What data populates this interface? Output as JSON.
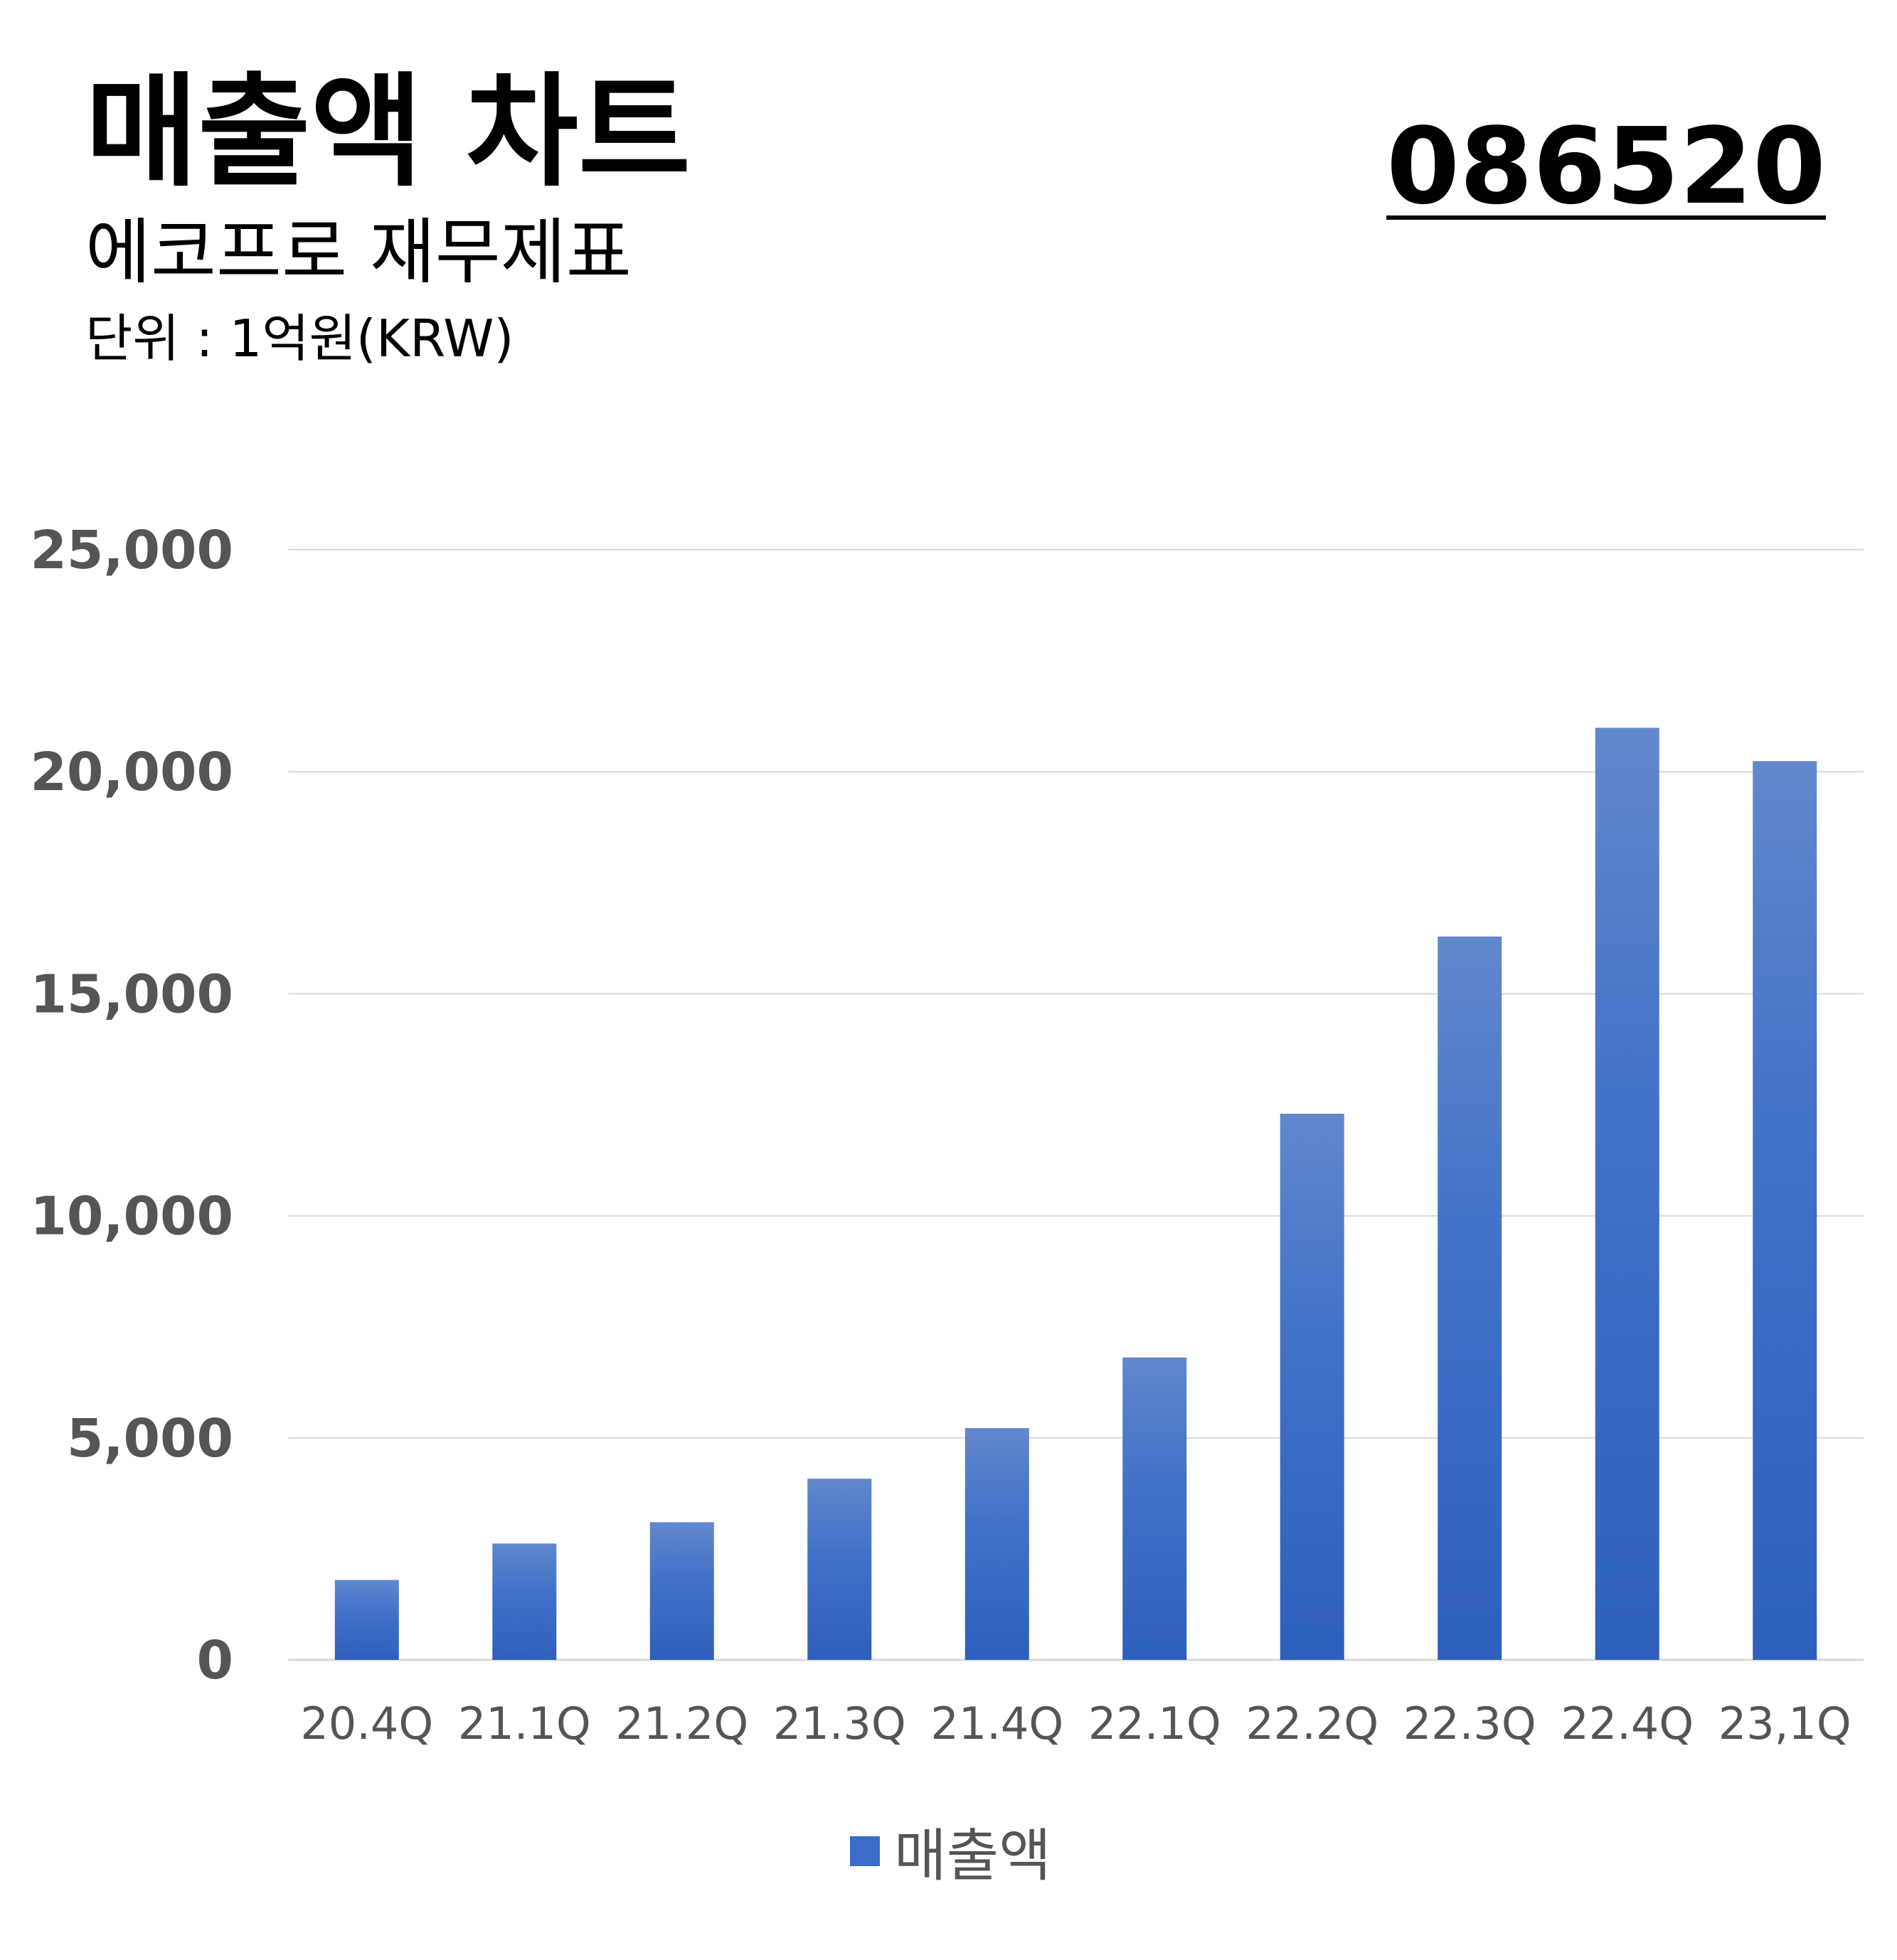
{
  "header": {
    "title": "매출액 차트",
    "subtitle": "에코프로 재무제표",
    "unit": "단위 : 1억원(KRW)",
    "code": "086520"
  },
  "colors": {
    "bar_top": "#6287cc",
    "bar_bottom": "#2d5fbd",
    "grid": "#d9d9d9",
    "tick_text": "#555555"
  },
  "chart_data": {
    "type": "bar",
    "categories": [
      "20.4Q",
      "21.1Q",
      "21.2Q",
      "21.3Q",
      "21.4Q",
      "22.1Q",
      "22.2Q",
      "22.3Q",
      "22.4Q",
      "23,1Q"
    ],
    "series": [
      {
        "name": "매출액",
        "values": [
          1800,
          2620,
          3100,
          4080,
          5220,
          6810,
          12300,
          16290,
          20990,
          20240
        ]
      }
    ],
    "yticks": [
      "0",
      "5,000",
      "10,000",
      "15,000",
      "20,000",
      "25,000"
    ],
    "ylim": [
      0,
      25000
    ],
    "grid": true,
    "legend_position": "bottom-center"
  }
}
